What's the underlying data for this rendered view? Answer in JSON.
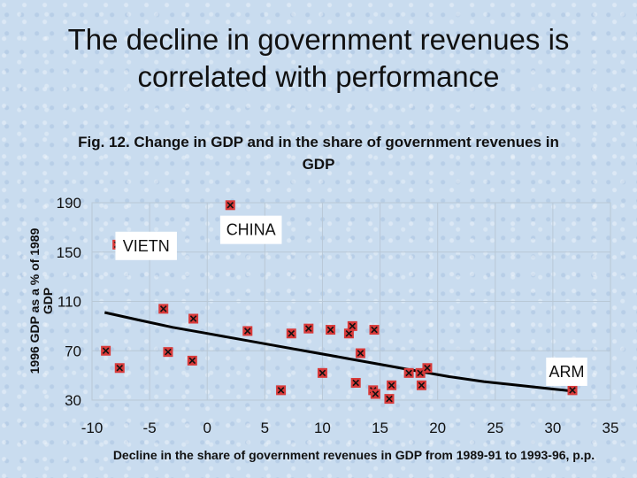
{
  "slide": {
    "title_line1": "The decline in government revenues is",
    "title_line2": "correlated with performance"
  },
  "chart_data": {
    "type": "scatter",
    "title_line1": "Fig. 12. Change in GDP and in the share of government revenues in",
    "title_line2": "GDP",
    "xlabel": "Decline in the share of government revenues in GDP from 1989-91 to 1993-96, p.p.",
    "ylabel_line1": "1996 GDP as a % of 1989",
    "ylabel_line2": "GDP",
    "xlim": [
      -10,
      35
    ],
    "ylim": [
      30,
      190
    ],
    "xticks": [
      -10,
      -5,
      0,
      5,
      10,
      15,
      20,
      25,
      30,
      35
    ],
    "yticks": [
      30,
      70,
      110,
      150,
      190
    ],
    "grid": true,
    "marker": "x-in-square",
    "marker_color": "#d83a3a",
    "points": [
      {
        "x": 2,
        "y": 188
      },
      {
        "x": -7.8,
        "y": 156
      },
      {
        "x": -3.8,
        "y": 104
      },
      {
        "x": -1.2,
        "y": 96
      },
      {
        "x": 3.5,
        "y": 86
      },
      {
        "x": 7.3,
        "y": 84
      },
      {
        "x": 8.8,
        "y": 88
      },
      {
        "x": 10.7,
        "y": 87
      },
      {
        "x": 12.3,
        "y": 84
      },
      {
        "x": 12.6,
        "y": 90
      },
      {
        "x": 14.5,
        "y": 87
      },
      {
        "x": -8.8,
        "y": 70
      },
      {
        "x": -7.6,
        "y": 56
      },
      {
        "x": -3.4,
        "y": 69
      },
      {
        "x": -1.3,
        "y": 62
      },
      {
        "x": 6.4,
        "y": 38
      },
      {
        "x": 10,
        "y": 52
      },
      {
        "x": 13.3,
        "y": 68
      },
      {
        "x": 12.9,
        "y": 44
      },
      {
        "x": 14.4,
        "y": 38
      },
      {
        "x": 14.6,
        "y": 35
      },
      {
        "x": 16,
        "y": 42
      },
      {
        "x": 15.8,
        "y": 31
      },
      {
        "x": 17.5,
        "y": 52
      },
      {
        "x": 18.5,
        "y": 52
      },
      {
        "x": 18.6,
        "y": 42
      },
      {
        "x": 19.1,
        "y": 56
      },
      {
        "x": 31.7,
        "y": 38
      }
    ],
    "trendline": {
      "x": [
        -8.9,
        -6,
        -3,
        0,
        3,
        6,
        9,
        12,
        15,
        18,
        21,
        24,
        27,
        30,
        32
      ],
      "y": [
        101,
        95,
        89,
        84,
        79,
        74,
        69,
        64,
        59,
        54,
        49,
        45,
        42,
        39,
        37
      ],
      "color": "#000000"
    },
    "annotations": [
      {
        "text": "CHINA",
        "x": 3.8,
        "y": 168
      },
      {
        "text": "VIETN",
        "x": -5.3,
        "y": 155
      },
      {
        "text": "ARM",
        "x": 31.2,
        "y": 53
      }
    ]
  }
}
